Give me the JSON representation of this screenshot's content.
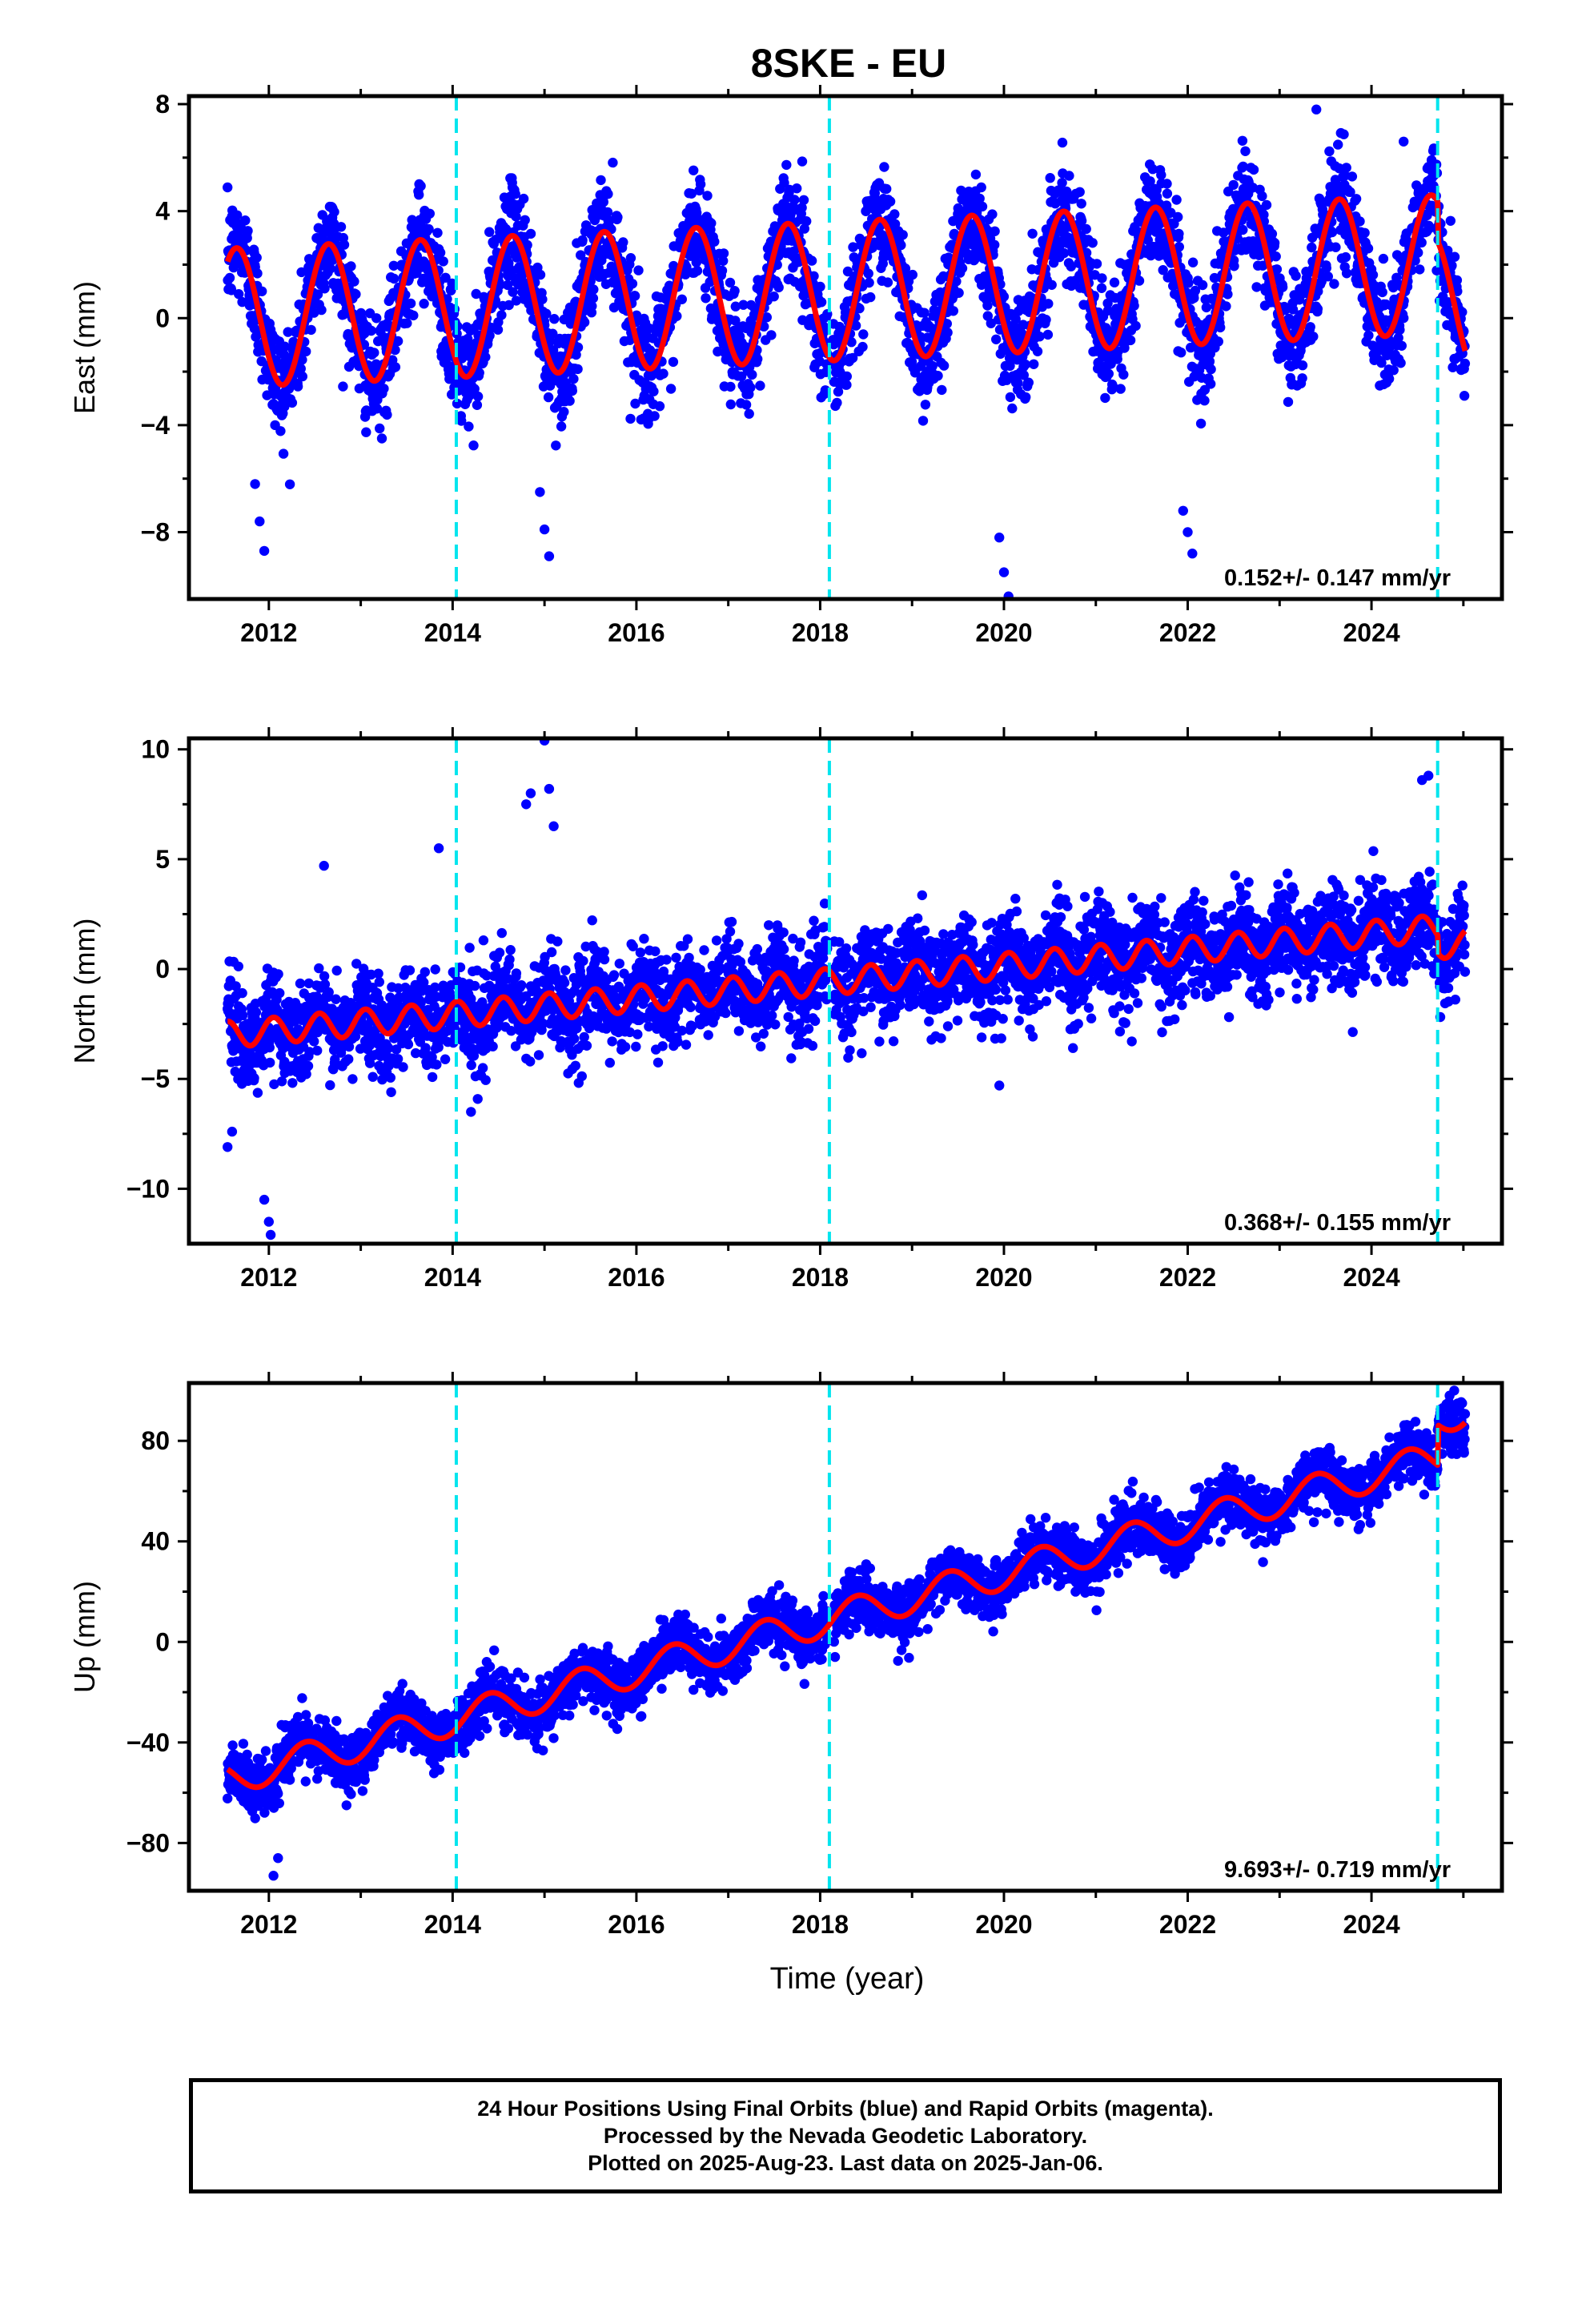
{
  "chart_data": {
    "type": "scatter",
    "title": "8SKE - EU",
    "xlabel": "Time (year)",
    "xlim": [
      2011.2,
      2025.35
    ],
    "x_ticks": [
      2012,
      2014,
      2016,
      2018,
      2020,
      2022,
      2024
    ],
    "x_tick_labels": [
      "2012",
      "2014",
      "2016",
      "2018",
      "2020",
      "2022",
      "2024"
    ],
    "marker_lines": [
      2014.04,
      2018.1,
      2024.72
    ],
    "colors": {
      "points": "#0000ff",
      "fit": "#ff0000",
      "markers": "#00e5ee",
      "frame": "#000000"
    },
    "grid": false,
    "panels": [
      {
        "component": "East",
        "ylabel": "East (mm)",
        "ylim": [
          -10.5,
          8.3
        ],
        "y_ticks": [
          -8,
          -4,
          0,
          4,
          8
        ],
        "y_tick_labels": [
          "−8",
          "−4",
          "0",
          "4",
          "8"
        ],
        "rate_text": "0.152+/- 0.147 mm/yr",
        "model": {
          "offset": 0.0,
          "rate": 0.152,
          "amp": 2.6,
          "phase": 2011.65,
          "period": 1.0,
          "noise": 1.0,
          "jump_year": 2024.72,
          "jump": -1.5
        },
        "outliers": [
          [
            2011.85,
            -6.2
          ],
          [
            2011.9,
            -7.6
          ],
          [
            2011.95,
            -8.7
          ],
          [
            2014.95,
            -6.5
          ],
          [
            2015.0,
            -7.9
          ],
          [
            2015.05,
            -8.9
          ],
          [
            2019.95,
            -8.2
          ],
          [
            2020.0,
            -9.5
          ],
          [
            2020.05,
            -10.4
          ],
          [
            2021.95,
            -7.2
          ],
          [
            2022.0,
            -8.0
          ],
          [
            2022.05,
            -8.8
          ],
          [
            2023.4,
            7.8
          ],
          [
            2024.35,
            6.6
          ]
        ]
      },
      {
        "component": "North",
        "ylabel": "North (mm)",
        "ylim": [
          -12.5,
          10.5
        ],
        "y_ticks": [
          -10,
          -5,
          0,
          5,
          10
        ],
        "y_tick_labels": [
          "−10",
          "−5",
          "0",
          "5",
          "10"
        ],
        "rate_text": "0.368+/- 0.155 mm/yr",
        "model": {
          "offset": -3.0,
          "rate": 0.368,
          "amp": 0.6,
          "phase": 2011.55,
          "period": 0.5,
          "noise": 1.05,
          "jump_year": 2024.72,
          "jump": -0.8
        },
        "outliers": [
          [
            2011.55,
            -8.1
          ],
          [
            2011.6,
            -7.4
          ],
          [
            2011.95,
            -10.5
          ],
          [
            2012.0,
            -11.5
          ],
          [
            2012.02,
            -12.1
          ],
          [
            2012.6,
            4.7
          ],
          [
            2013.85,
            5.5
          ],
          [
            2014.8,
            7.5
          ],
          [
            2014.85,
            8.0
          ],
          [
            2015.0,
            10.4
          ],
          [
            2015.05,
            8.2
          ],
          [
            2015.1,
            6.5
          ],
          [
            2014.2,
            -6.5
          ],
          [
            2024.55,
            8.6
          ],
          [
            2024.62,
            8.8
          ],
          [
            2019.95,
            -5.3
          ]
        ]
      },
      {
        "component": "Up",
        "ylabel": "Up (mm)",
        "ylim": [
          -99,
          103
        ],
        "y_ticks": [
          -80,
          -40,
          0,
          40,
          80
        ],
        "y_tick_labels": [
          "−80",
          "−40",
          "0",
          "40",
          "80"
        ],
        "rate_text": "9.693+/- 0.719 mm/yr",
        "model": {
          "offset": -55.0,
          "rate": 9.693,
          "amp": 6.5,
          "phase": 2012.4,
          "period": 1.0,
          "noise": 5.5,
          "jump_year": 2024.72,
          "jump": 16.0
        },
        "outliers": [
          [
            2012.05,
            -93.0
          ],
          [
            2012.1,
            -86.0
          ],
          [
            2024.9,
            100.0
          ],
          [
            2024.85,
            98.0
          ]
        ]
      }
    ]
  },
  "footer": {
    "line1": "24 Hour Positions Using Final Orbits (blue) and Rapid Orbits (magenta).",
    "line2": "Processed by the Nevada Geodetic Laboratory.",
    "line3": "Plotted on 2025-Aug-23. Last data on 2025-Jan-06."
  }
}
